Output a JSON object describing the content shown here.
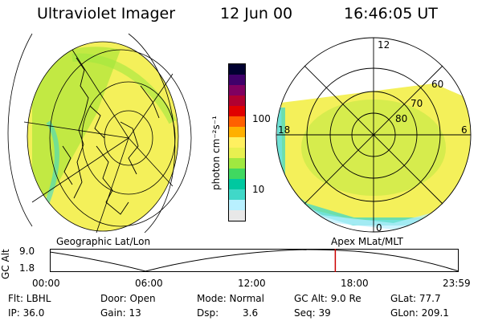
{
  "header": {
    "title": "Ultraviolet Imager",
    "date": "12 Jun 00",
    "time": "16:46:05 UT"
  },
  "colorbar": {
    "unit_label": "photon cm⁻²s⁻¹",
    "tick_100": "100",
    "tick_10": "10",
    "colors": [
      "#e8e8e8",
      "#b8f0ff",
      "#40d8c8",
      "#00c8a0",
      "#40d860",
      "#a0e840",
      "#e8f050",
      "#fff060",
      "#ffb000",
      "#ff6000",
      "#e00000",
      "#b00030",
      "#800060",
      "#40006a",
      "#000030"
    ]
  },
  "left_panel": {
    "caption": "Geographic Lat/Lon"
  },
  "right_panel": {
    "caption": "Apex MLat/MLT",
    "mlt_labels": {
      "top": "12",
      "left": "18",
      "right": "6",
      "bottom": "0"
    },
    "lat_labels": [
      "60",
      "70",
      "80"
    ]
  },
  "timeline": {
    "ylabel": "GC Alt",
    "y_top": "9.0",
    "y_bottom": "1.8",
    "ticks": [
      "00:00",
      "06:00",
      "12:00",
      "18:00",
      "23:59"
    ],
    "current_time_fraction": 0.699,
    "marker_color": "#cc0000"
  },
  "status": {
    "filter": "Flt: LBHL",
    "ip": "IP: 36.0",
    "door": "Door: Open",
    "gain": "Gain: 13",
    "mode": "Mode: Normal",
    "dsp_label": "Dsp:",
    "dsp_value": "3.6",
    "gc_alt": "GC Alt: 9.0 Re",
    "seq": "Seq: 39",
    "glat": "GLat:  77.7",
    "glon": "GLon: 209.1"
  }
}
